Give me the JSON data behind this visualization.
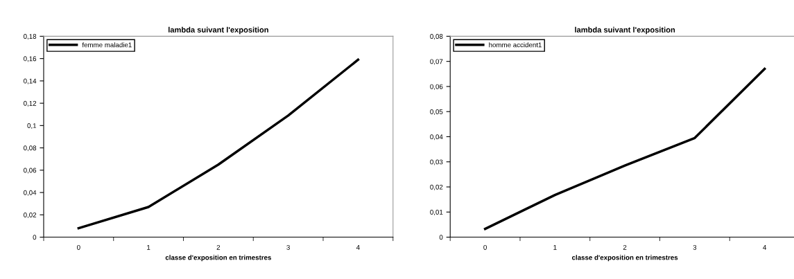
{
  "chart_data": [
    {
      "type": "line",
      "title": "lambda suivant l'exposition",
      "xlabel": "classe d'exposition en trimestres",
      "categories": [
        "0",
        "1",
        "2",
        "3",
        "4"
      ],
      "series": [
        {
          "name": "femme maladie1",
          "color": "#000000",
          "values": [
            0.008,
            0.027,
            0.065,
            0.109,
            0.159
          ]
        }
      ],
      "ylim": [
        0,
        0.18
      ],
      "yticks": [
        0,
        {
          "value": 0.02,
          "label": "0,02"
        },
        {
          "value": 0.04,
          "label": "0,04"
        },
        {
          "value": 0.06,
          "label": "0,06"
        },
        {
          "value": 0.08,
          "label": "0,08"
        },
        {
          "value": 0.1,
          "label": "0,1"
        },
        {
          "value": 0.12,
          "label": "0,12"
        },
        {
          "value": 0.14,
          "label": "0,14"
        },
        {
          "value": 0.16,
          "label": "0,16"
        },
        {
          "value": 0.18,
          "label": "0,18"
        }
      ],
      "grid": false,
      "legend": "top left",
      "marker": "none",
      "line_style": "solid"
    },
    {
      "type": "line",
      "title": "lambda suivant l'exposition",
      "xlabel": "classe d'exposition en trimestres",
      "categories": [
        "0",
        "1",
        "2",
        "3",
        "4"
      ],
      "series": [
        {
          "name": "homme accident1",
          "color": "#000000",
          "values": [
            0.0033,
            0.0168,
            0.0285,
            0.0395,
            0.067
          ]
        }
      ],
      "ylim": [
        0,
        0.08
      ],
      "yticks": [
        0,
        {
          "value": 0.01,
          "label": "0,01"
        },
        {
          "value": 0.02,
          "label": "0,02"
        },
        {
          "value": 0.03,
          "label": "0,03"
        },
        {
          "value": 0.04,
          "label": "0,04"
        },
        {
          "value": 0.05,
          "label": "0,05"
        },
        {
          "value": 0.06,
          "label": "0,06"
        },
        {
          "value": 0.07,
          "label": "0,07"
        },
        {
          "value": 0.08,
          "label": "0,08"
        }
      ],
      "grid": false,
      "legend": "top left",
      "marker": "none",
      "line_style": "solid"
    }
  ]
}
